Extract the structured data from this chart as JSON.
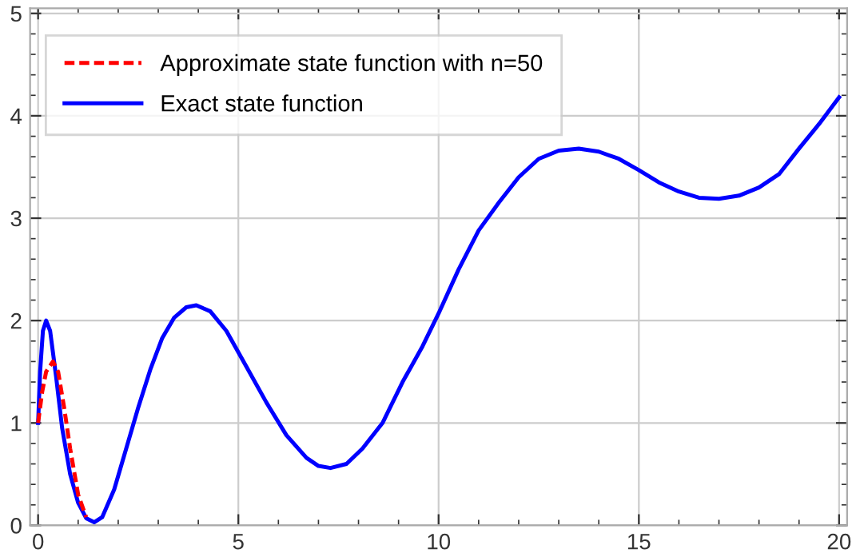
{
  "chart_data": {
    "type": "line",
    "xlim": [
      -0.2,
      20.2
    ],
    "ylim": [
      0,
      5.05
    ],
    "xticks": [
      0,
      5,
      10,
      15,
      20
    ],
    "yticks": [
      0,
      1,
      2,
      3,
      4,
      5
    ],
    "grid": true,
    "legend": "top left",
    "series": [
      {
        "name": "Approximate state function with n=50",
        "color": "#ff0000",
        "line_style": "dashed",
        "x": [
          0,
          0.1,
          0.2,
          0.37,
          0.5,
          0.65,
          0.8,
          1.0,
          1.2
        ],
        "values": [
          1.0,
          1.3,
          1.5,
          1.6,
          1.5,
          1.15,
          0.75,
          0.3,
          0.08
        ]
      },
      {
        "name": "Exact state function",
        "color": "#0000ff",
        "line_style": "solid",
        "x": [
          0,
          0.05,
          0.12,
          0.2,
          0.3,
          0.45,
          0.6,
          0.8,
          1.0,
          1.2,
          1.4,
          1.6,
          1.9,
          2.2,
          2.5,
          2.8,
          3.1,
          3.4,
          3.7,
          3.95,
          4.3,
          4.7,
          5.2,
          5.7,
          6.2,
          6.7,
          7.0,
          7.3,
          7.7,
          8.1,
          8.6,
          9.1,
          9.6,
          10.0,
          10.5,
          11.0,
          11.5,
          12.0,
          12.5,
          13.0,
          13.5,
          14.0,
          14.5,
          15.0,
          15.5,
          16.0,
          16.5,
          17.0,
          17.5,
          18.0,
          18.5,
          19.0,
          19.5,
          20
        ],
        "values": [
          1.0,
          1.5,
          1.9,
          2.0,
          1.9,
          1.45,
          0.95,
          0.5,
          0.22,
          0.07,
          0.03,
          0.08,
          0.35,
          0.75,
          1.15,
          1.52,
          1.83,
          2.03,
          2.13,
          2.15,
          2.09,
          1.9,
          1.55,
          1.2,
          0.88,
          0.66,
          0.58,
          0.56,
          0.6,
          0.75,
          1.0,
          1.4,
          1.75,
          2.07,
          2.5,
          2.88,
          3.15,
          3.4,
          3.58,
          3.66,
          3.68,
          3.65,
          3.58,
          3.47,
          3.35,
          3.26,
          3.2,
          3.19,
          3.22,
          3.3,
          3.43,
          3.68,
          3.92,
          4.18
        ]
      }
    ]
  }
}
